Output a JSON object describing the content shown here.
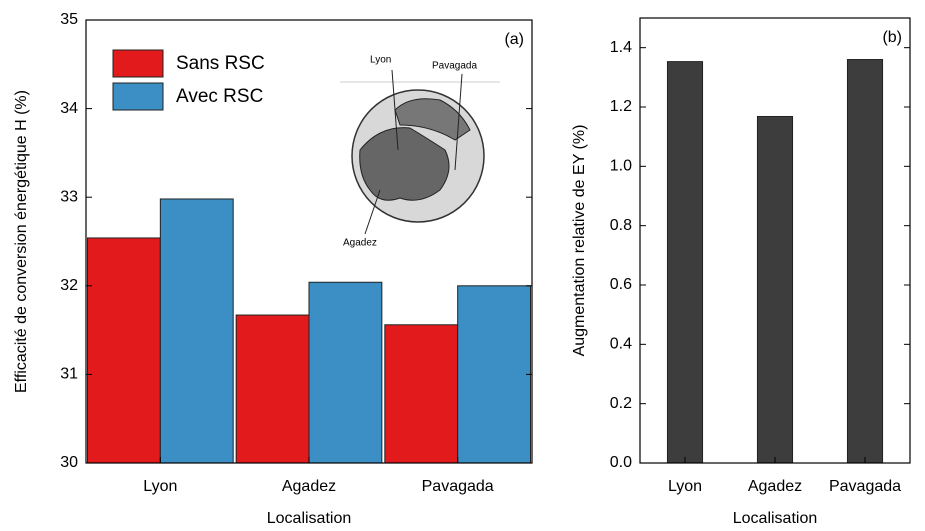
{
  "chart_data": [
    {
      "type": "bar",
      "panel_label": "(a)",
      "xlabel": "Localisation",
      "ylabel": "Efficacité de conversion énergétique H (%)",
      "categories": [
        "Lyon",
        "Agadez",
        "Pavagada"
      ],
      "series": [
        {
          "name": "Sans RSC",
          "color": "#e31a1c",
          "values": [
            32.54,
            31.67,
            31.56
          ]
        },
        {
          "name": "Avec RSC",
          "color": "#3b8fc4",
          "values": [
            32.98,
            32.04,
            32.0
          ]
        }
      ],
      "ylim": [
        30,
        35
      ],
      "yticks": [
        30,
        31,
        32,
        33,
        34,
        35
      ],
      "legend": "upper left",
      "inset_labels": [
        "Lyon",
        "Pavagada",
        "Agadez"
      ]
    },
    {
      "type": "bar",
      "panel_label": "(b)",
      "xlabel": "Localisation",
      "ylabel": "Augmentation relative de EY (%)",
      "categories": [
        "Lyon",
        "Agadez",
        "Pavagada"
      ],
      "values": [
        1.353,
        1.168,
        1.36
      ],
      "color": "#3d3d3d",
      "ylim": [
        0,
        1.5
      ],
      "yticks": [
        {
          "value": 0,
          "label": "0.0"
        },
        0.2,
        0.4,
        0.6,
        0.8,
        {
          "value": 1,
          "label": "1.0"
        },
        1.2,
        1.4
      ]
    }
  ]
}
